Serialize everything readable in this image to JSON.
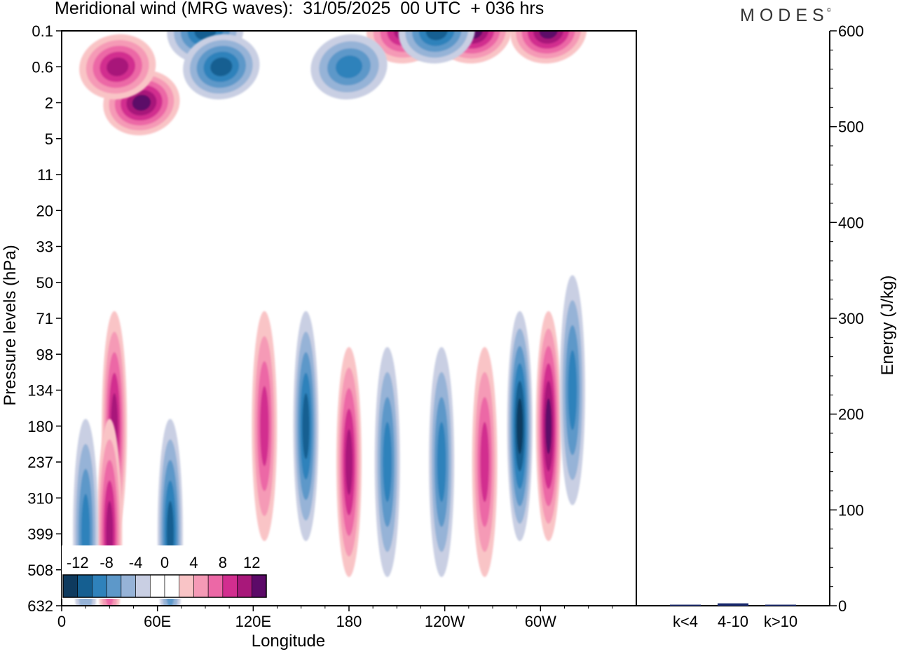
{
  "header": {
    "title": "Meridional wind (MRG waves):  31/05/2025  00 UTC  + 036 hrs",
    "brand": "MODES",
    "brand_mark": "©"
  },
  "chart_data": [
    {
      "type": "heatmap",
      "variable": "Meridional wind (MRG waves)",
      "xlabel": "Longitude",
      "ylabel": "Pressure levels (hPa)",
      "x_ticks": [
        "0",
        "60E",
        "120E",
        "180",
        "120W",
        "60W"
      ],
      "y_ticks": [
        "0.1",
        "0.6",
        "2",
        "5",
        "11",
        "20",
        "33",
        "50",
        "71",
        "98",
        "134",
        "180",
        "237",
        "310",
        "399",
        "508",
        "632"
      ],
      "y_scale": "model levels (top to bottom)",
      "colorbar": {
        "tick_labels": [
          "-12",
          "-8",
          "-4",
          "0",
          "4",
          "8",
          "12"
        ],
        "placement": "bottom-left inset",
        "colors": [
          "#0e3a5e",
          "#155f91",
          "#2f82bb",
          "#5d98c9",
          "#96b3d7",
          "#c9cfe3",
          "#ffffff",
          "#ffffff",
          "#f9c4c6",
          "#f59ab6",
          "#ec68a6",
          "#d22e8f",
          "#a8187a",
          "#5c0a68"
        ]
      },
      "features": [
        {
          "sign": "positive",
          "lon": 50,
          "level": "2",
          "peak": 13
        },
        {
          "sign": "positive",
          "lon": 35,
          "level": "0.6",
          "peak": 9
        },
        {
          "sign": "positive",
          "lon": 215,
          "level": "0.1",
          "peak": 9
        },
        {
          "sign": "positive",
          "lon": 258,
          "level": "0.1",
          "peak": 15
        },
        {
          "sign": "positive",
          "lon": 305,
          "level": "0.1",
          "peak": 11
        },
        {
          "sign": "negative",
          "lon": 90,
          "level": "0.1",
          "peak": -9
        },
        {
          "sign": "negative",
          "lon": 100,
          "level": "0.6",
          "peak": -10
        },
        {
          "sign": "negative",
          "lon": 180,
          "level": "0.6",
          "peak": -8
        },
        {
          "sign": "negative",
          "lon": 235,
          "level": "0.1",
          "peak": -10
        },
        {
          "sign": "positive",
          "lon": 33,
          "level": "180",
          "peak": 10
        },
        {
          "sign": "positive",
          "lon": 30,
          "level": "399",
          "peak": 10
        },
        {
          "sign": "positive",
          "lon": 305,
          "level": "180",
          "peak": 14
        },
        {
          "sign": "positive",
          "lon": 180,
          "level": "237",
          "peak": 9
        },
        {
          "sign": "positive",
          "lon": 127,
          "level": "180",
          "peak": 7
        },
        {
          "sign": "positive",
          "lon": 265,
          "level": "237",
          "peak": 8
        },
        {
          "sign": "negative",
          "lon": 287,
          "level": "180",
          "peak": -14
        },
        {
          "sign": "negative",
          "lon": 15,
          "level": "399",
          "peak": -8
        },
        {
          "sign": "negative",
          "lon": 68,
          "level": "399",
          "peak": -9
        },
        {
          "sign": "negative",
          "lon": 153,
          "level": "180",
          "peak": -9
        },
        {
          "sign": "negative",
          "lon": 204,
          "level": "237",
          "peak": -8
        },
        {
          "sign": "negative",
          "lon": 238,
          "level": "237",
          "peak": -7
        },
        {
          "sign": "negative",
          "lon": 320,
          "level": "134",
          "peak": -8
        }
      ]
    },
    {
      "type": "bar",
      "categories": [
        "k<4",
        "4-10",
        "k>10"
      ],
      "values": [
        0.5,
        2.5,
        0.5
      ],
      "ylabel": "Energy (J/kg)",
      "ylim": [
        0,
        600
      ],
      "y_ticks": [
        0,
        100,
        200,
        300,
        400,
        500,
        600
      ],
      "bar_color": "#1a2a6e"
    }
  ]
}
